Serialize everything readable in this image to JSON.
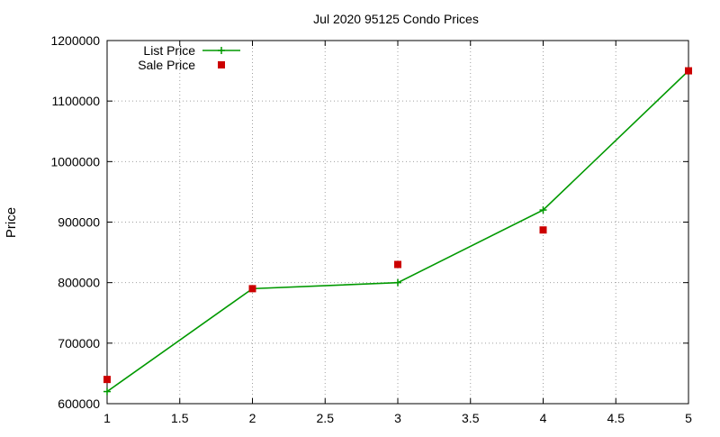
{
  "chart_data": {
    "type": "line",
    "title": "Jul 2020 95125 Condo Prices",
    "xlabel": "",
    "ylabel": "Price",
    "xlim": [
      1,
      5
    ],
    "ylim": [
      600000,
      1200000
    ],
    "xticks": [
      1,
      1.5,
      2,
      2.5,
      3,
      3.5,
      4,
      4.5,
      5
    ],
    "xtick_labels": [
      "1",
      "1.5",
      "2",
      "2.5",
      "3",
      "3.5",
      "4",
      "4.5",
      "5"
    ],
    "yticks": [
      600000,
      700000,
      800000,
      900000,
      1000000,
      1100000,
      1200000
    ],
    "ytick_labels": [
      "600000",
      "700000",
      "800000",
      "900000",
      "1000000",
      "1100000",
      "1200000"
    ],
    "grid": true,
    "legend_position": "top-left",
    "series": [
      {
        "name": "List Price",
        "style": "linespoints",
        "marker": "plus",
        "color": "#009900",
        "x": [
          1,
          2,
          3,
          4,
          5
        ],
        "y": [
          620000,
          790000,
          800000,
          920000,
          1150000
        ]
      },
      {
        "name": "Sale Price",
        "style": "points",
        "marker": "square",
        "color": "#cc0000",
        "x": [
          1,
          2,
          3,
          4,
          5
        ],
        "y": [
          640000,
          790000,
          830000,
          887000,
          1150000
        ]
      }
    ]
  }
}
